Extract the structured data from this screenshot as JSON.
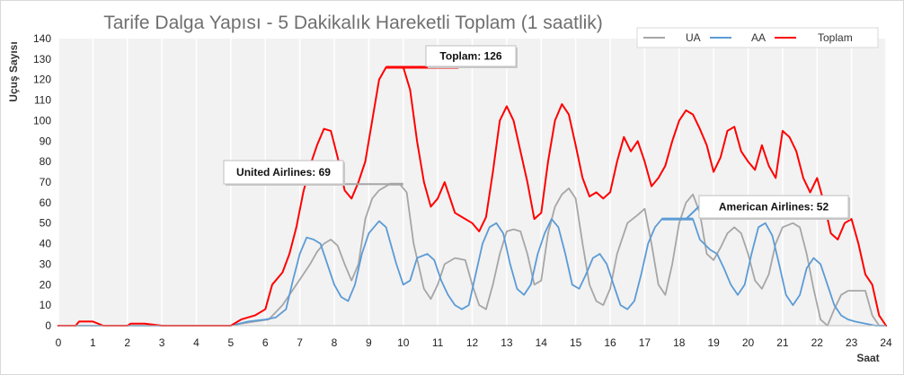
{
  "chart_data": {
    "type": "line",
    "title": "Tarife Dalga Yapısı - 5 Dakikalık Hareketli Toplam (1 saatlik)",
    "xlabel": "Saat",
    "ylabel": "Uçuş Sayısı",
    "xlim": [
      0,
      24
    ],
    "ylim": [
      0,
      140
    ],
    "x_ticks": [
      "0",
      "1",
      "2",
      "3",
      "4",
      "5",
      "6",
      "7",
      "8",
      "9",
      "10",
      "11",
      "12",
      "13",
      "14",
      "15",
      "16",
      "17",
      "18",
      "19",
      "20",
      "21",
      "22",
      "23",
      "24"
    ],
    "y_ticks": [
      "0",
      "10",
      "20",
      "30",
      "40",
      "50",
      "60",
      "70",
      "80",
      "90",
      "100",
      "110",
      "120",
      "130",
      "140"
    ],
    "grid": "vertical",
    "legend_position": "top-right",
    "colors": {
      "UA": "#a6a6a6",
      "AA": "#5b9bd5",
      "Toplam": "#ff0000"
    },
    "series": [
      {
        "name": "UA",
        "points": [
          [
            0,
            0
          ],
          [
            5,
            0
          ],
          [
            5.3,
            1
          ],
          [
            5.7,
            2
          ],
          [
            6.1,
            3
          ],
          [
            6.5,
            10
          ],
          [
            6.9,
            20
          ],
          [
            7.1,
            25
          ],
          [
            7.3,
            30
          ],
          [
            7.5,
            36
          ],
          [
            7.7,
            40
          ],
          [
            7.9,
            42
          ],
          [
            8.1,
            39
          ],
          [
            8.3,
            30
          ],
          [
            8.5,
            22
          ],
          [
            8.7,
            30
          ],
          [
            8.9,
            52
          ],
          [
            9.1,
            62
          ],
          [
            9.3,
            66
          ],
          [
            9.6,
            69
          ],
          [
            9.9,
            69
          ],
          [
            10.1,
            65
          ],
          [
            10.3,
            40
          ],
          [
            10.6,
            18
          ],
          [
            10.8,
            13
          ],
          [
            11.0,
            20
          ],
          [
            11.2,
            30
          ],
          [
            11.5,
            33
          ],
          [
            11.8,
            32
          ],
          [
            12.0,
            20
          ],
          [
            12.2,
            10
          ],
          [
            12.4,
            8
          ],
          [
            12.6,
            20
          ],
          [
            12.8,
            35
          ],
          [
            13.0,
            46
          ],
          [
            13.2,
            47
          ],
          [
            13.4,
            46
          ],
          [
            13.6,
            35
          ],
          [
            13.8,
            20
          ],
          [
            14.0,
            22
          ],
          [
            14.2,
            45
          ],
          [
            14.4,
            58
          ],
          [
            14.6,
            64
          ],
          [
            14.8,
            67
          ],
          [
            15.0,
            62
          ],
          [
            15.2,
            40
          ],
          [
            15.4,
            20
          ],
          [
            15.6,
            12
          ],
          [
            15.8,
            10
          ],
          [
            16.0,
            18
          ],
          [
            16.2,
            35
          ],
          [
            16.5,
            50
          ],
          [
            16.8,
            54
          ],
          [
            17.0,
            57
          ],
          [
            17.2,
            40
          ],
          [
            17.4,
            20
          ],
          [
            17.6,
            15
          ],
          [
            17.8,
            30
          ],
          [
            18.0,
            50
          ],
          [
            18.2,
            60
          ],
          [
            18.4,
            64
          ],
          [
            18.6,
            55
          ],
          [
            18.8,
            35
          ],
          [
            19.0,
            32
          ],
          [
            19.2,
            38
          ],
          [
            19.4,
            45
          ],
          [
            19.6,
            48
          ],
          [
            19.8,
            45
          ],
          [
            20.0,
            35
          ],
          [
            20.2,
            22
          ],
          [
            20.4,
            18
          ],
          [
            20.6,
            25
          ],
          [
            20.8,
            40
          ],
          [
            21.0,
            48
          ],
          [
            21.3,
            50
          ],
          [
            21.5,
            48
          ],
          [
            21.7,
            35
          ],
          [
            21.9,
            18
          ],
          [
            22.1,
            3
          ],
          [
            22.3,
            0
          ],
          [
            22.5,
            8
          ],
          [
            22.7,
            15
          ],
          [
            22.9,
            17
          ],
          [
            23.1,
            17
          ],
          [
            23.4,
            17
          ],
          [
            23.6,
            5
          ],
          [
            23.8,
            0
          ],
          [
            24,
            0
          ]
        ]
      },
      {
        "name": "AA",
        "points": [
          [
            0,
            0
          ],
          [
            5,
            0
          ],
          [
            5.5,
            2
          ],
          [
            6.0,
            3
          ],
          [
            6.3,
            4
          ],
          [
            6.6,
            8
          ],
          [
            6.8,
            22
          ],
          [
            7.0,
            35
          ],
          [
            7.2,
            43
          ],
          [
            7.4,
            42
          ],
          [
            7.6,
            40
          ],
          [
            7.8,
            30
          ],
          [
            8.0,
            20
          ],
          [
            8.2,
            14
          ],
          [
            8.4,
            12
          ],
          [
            8.6,
            20
          ],
          [
            8.8,
            35
          ],
          [
            9.0,
            45
          ],
          [
            9.3,
            51
          ],
          [
            9.5,
            48
          ],
          [
            9.8,
            30
          ],
          [
            10.0,
            20
          ],
          [
            10.2,
            22
          ],
          [
            10.4,
            33
          ],
          [
            10.7,
            35
          ],
          [
            10.9,
            32
          ],
          [
            11.1,
            22
          ],
          [
            11.3,
            15
          ],
          [
            11.5,
            10
          ],
          [
            11.7,
            8
          ],
          [
            11.9,
            10
          ],
          [
            12.1,
            25
          ],
          [
            12.3,
            40
          ],
          [
            12.5,
            48
          ],
          [
            12.7,
            50
          ],
          [
            12.9,
            45
          ],
          [
            13.1,
            30
          ],
          [
            13.3,
            18
          ],
          [
            13.5,
            15
          ],
          [
            13.7,
            20
          ],
          [
            13.9,
            35
          ],
          [
            14.1,
            45
          ],
          [
            14.3,
            52
          ],
          [
            14.5,
            48
          ],
          [
            14.7,
            35
          ],
          [
            14.9,
            20
          ],
          [
            15.1,
            18
          ],
          [
            15.3,
            25
          ],
          [
            15.5,
            33
          ],
          [
            15.7,
            35
          ],
          [
            15.9,
            30
          ],
          [
            16.1,
            20
          ],
          [
            16.3,
            10
          ],
          [
            16.5,
            8
          ],
          [
            16.7,
            12
          ],
          [
            16.9,
            25
          ],
          [
            17.1,
            40
          ],
          [
            17.3,
            48
          ],
          [
            17.5,
            52
          ],
          [
            18.4,
            52
          ],
          [
            18.6,
            42
          ],
          [
            18.9,
            37
          ],
          [
            19.1,
            35
          ],
          [
            19.3,
            28
          ],
          [
            19.5,
            20
          ],
          [
            19.7,
            15
          ],
          [
            19.9,
            20
          ],
          [
            20.1,
            35
          ],
          [
            20.3,
            48
          ],
          [
            20.5,
            50
          ],
          [
            20.7,
            44
          ],
          [
            20.9,
            30
          ],
          [
            21.1,
            15
          ],
          [
            21.3,
            10
          ],
          [
            21.5,
            15
          ],
          [
            21.7,
            28
          ],
          [
            21.9,
            33
          ],
          [
            22.1,
            30
          ],
          [
            22.3,
            20
          ],
          [
            22.5,
            10
          ],
          [
            22.7,
            5
          ],
          [
            22.9,
            3
          ],
          [
            23.1,
            2
          ],
          [
            23.4,
            1
          ],
          [
            23.7,
            0
          ],
          [
            24,
            0
          ]
        ]
      },
      {
        "name": "Toplam",
        "points": [
          [
            0,
            0
          ],
          [
            0.5,
            0
          ],
          [
            0.6,
            2
          ],
          [
            1.0,
            2
          ],
          [
            1.3,
            0
          ],
          [
            2.0,
            0
          ],
          [
            2.1,
            1
          ],
          [
            2.5,
            1
          ],
          [
            3.0,
            0
          ],
          [
            5.0,
            0
          ],
          [
            5.3,
            3
          ],
          [
            5.7,
            5
          ],
          [
            6.0,
            8
          ],
          [
            6.2,
            20
          ],
          [
            6.5,
            26
          ],
          [
            6.7,
            35
          ],
          [
            6.9,
            48
          ],
          [
            7.1,
            65
          ],
          [
            7.3,
            78
          ],
          [
            7.5,
            88
          ],
          [
            7.7,
            96
          ],
          [
            7.9,
            95
          ],
          [
            8.1,
            82
          ],
          [
            8.3,
            66
          ],
          [
            8.5,
            62
          ],
          [
            8.7,
            70
          ],
          [
            8.9,
            80
          ],
          [
            9.1,
            100
          ],
          [
            9.3,
            120
          ],
          [
            9.5,
            126
          ],
          [
            10.0,
            126
          ],
          [
            10.2,
            115
          ],
          [
            10.4,
            90
          ],
          [
            10.6,
            70
          ],
          [
            10.8,
            58
          ],
          [
            11.0,
            62
          ],
          [
            11.2,
            70
          ],
          [
            11.5,
            55
          ],
          [
            11.8,
            52
          ],
          [
            12.0,
            50
          ],
          [
            12.2,
            46
          ],
          [
            12.4,
            53
          ],
          [
            12.6,
            75
          ],
          [
            12.8,
            100
          ],
          [
            13.0,
            107
          ],
          [
            13.2,
            100
          ],
          [
            13.4,
            85
          ],
          [
            13.6,
            70
          ],
          [
            13.8,
            52
          ],
          [
            14.0,
            55
          ],
          [
            14.2,
            80
          ],
          [
            14.4,
            100
          ],
          [
            14.6,
            108
          ],
          [
            14.8,
            103
          ],
          [
            15.0,
            88
          ],
          [
            15.2,
            72
          ],
          [
            15.4,
            63
          ],
          [
            15.6,
            65
          ],
          [
            15.8,
            62
          ],
          [
            16.0,
            65
          ],
          [
            16.2,
            80
          ],
          [
            16.4,
            92
          ],
          [
            16.6,
            85
          ],
          [
            16.8,
            90
          ],
          [
            17.0,
            80
          ],
          [
            17.2,
            68
          ],
          [
            17.4,
            72
          ],
          [
            17.6,
            78
          ],
          [
            17.8,
            90
          ],
          [
            18.0,
            100
          ],
          [
            18.2,
            105
          ],
          [
            18.4,
            103
          ],
          [
            18.6,
            96
          ],
          [
            18.8,
            88
          ],
          [
            19.0,
            75
          ],
          [
            19.2,
            82
          ],
          [
            19.4,
            95
          ],
          [
            19.6,
            97
          ],
          [
            19.8,
            85
          ],
          [
            20.0,
            80
          ],
          [
            20.2,
            76
          ],
          [
            20.4,
            88
          ],
          [
            20.6,
            78
          ],
          [
            20.8,
            72
          ],
          [
            21.0,
            95
          ],
          [
            21.2,
            92
          ],
          [
            21.4,
            85
          ],
          [
            21.6,
            72
          ],
          [
            21.8,
            65
          ],
          [
            22.0,
            72
          ],
          [
            22.2,
            60
          ],
          [
            22.4,
            45
          ],
          [
            22.6,
            42
          ],
          [
            22.8,
            50
          ],
          [
            23.0,
            52
          ],
          [
            23.2,
            40
          ],
          [
            23.4,
            25
          ],
          [
            23.6,
            20
          ],
          [
            23.8,
            5
          ],
          [
            24,
            0
          ]
        ]
      }
    ],
    "annotations": [
      {
        "text": "Toplam: 126",
        "series": "Toplam",
        "x": 9.5,
        "y": 126
      },
      {
        "text": "United Airlines: 69",
        "series": "UA",
        "x": 9.6,
        "y": 69
      },
      {
        "text": "American Airlines: 52",
        "series": "AA",
        "x": 17.5,
        "y": 52
      }
    ]
  }
}
